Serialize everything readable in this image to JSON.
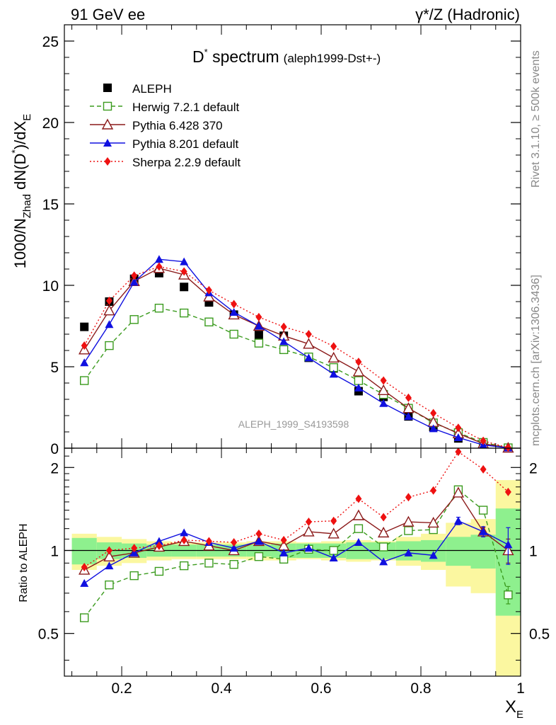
{
  "header": {
    "left": "91 GeV ee",
    "right": "γ*/Z (Hadronic)"
  },
  "side_texts": {
    "rivet": "Rivet 3.1.10, ≥ 500k events",
    "mcplots": "mcplots.cern.ch [arXiv:1306.3436]"
  },
  "watermark": "ALEPH_1999_S4193598",
  "chart_data": [
    {
      "type": "scatter",
      "panel": "main",
      "title": "D* spectrum",
      "title_main": "D",
      "title_sup": "*",
      "title_rest": " spectrum",
      "title_suffix": "(aleph1999-Dst+-)",
      "ylabel": "1000/N_Zhad dN(D*)/dX_E",
      "ylabel_parts": {
        "a": "1000/N",
        "a_sub": "Zhad",
        "b": " dN(D",
        "b_sup": "*",
        "c": ")/dX",
        "c_sub": "E"
      },
      "xlim": [
        0.085,
        1.0
      ],
      "ylim": [
        0,
        26
      ],
      "yticks": [
        0,
        5,
        10,
        15,
        20,
        25
      ],
      "ytick_labels": [
        "0",
        "5",
        "10",
        "15",
        "20",
        "25"
      ],
      "legend_position": "top-left",
      "x": [
        0.125,
        0.175,
        0.225,
        0.275,
        0.325,
        0.375,
        0.425,
        0.475,
        0.525,
        0.575,
        0.625,
        0.675,
        0.725,
        0.775,
        0.825,
        0.875,
        0.925,
        0.975
      ],
      "series": [
        {
          "name": "ALEPH",
          "color": "#000000",
          "marker": "square-filled",
          "line": "none",
          "values": [
            7.45,
            9.0,
            10.4,
            10.75,
            9.9,
            8.95,
            8.2,
            6.95,
            6.9,
            5.55,
            4.9,
            3.5,
            3.15,
            1.95,
            1.3,
            0.6,
            0.25,
            0.02
          ]
        },
        {
          "name": "Herwig 7.2.1 default",
          "color": "#3b9b1e",
          "marker": "square-open",
          "line": "dashed",
          "values": [
            4.15,
            6.3,
            7.9,
            8.6,
            8.3,
            7.75,
            7.0,
            6.45,
            6.05,
            5.6,
            4.95,
            4.15,
            3.3,
            2.45,
            1.55,
            0.95,
            0.35,
            0.02
          ]
        },
        {
          "name": "Pythia 6.428 370",
          "color": "#8b1a1a",
          "marker": "triangle-open",
          "line": "solid",
          "values": [
            6.05,
            8.45,
            10.25,
            11.05,
            10.65,
            9.3,
            8.2,
            7.5,
            6.9,
            6.4,
            5.55,
            4.7,
            3.55,
            2.45,
            1.6,
            0.9,
            0.28,
            0.02
          ]
        },
        {
          "name": "Pythia 8.201 default",
          "color": "#1010e0",
          "marker": "triangle-filled",
          "line": "solid",
          "values": [
            5.25,
            7.6,
            10.2,
            11.6,
            11.45,
            9.55,
            8.35,
            7.5,
            6.55,
            5.55,
            4.55,
            3.7,
            2.75,
            1.95,
            1.2,
            0.65,
            0.2,
            0.02
          ]
        },
        {
          "name": "Sherpa 2.2.9 default",
          "color": "#ee1111",
          "marker": "diamond-filled",
          "line": "dotted",
          "values": [
            6.3,
            9.05,
            10.6,
            11.15,
            10.85,
            9.7,
            8.85,
            8.05,
            7.45,
            7.0,
            6.25,
            5.3,
            4.15,
            3.1,
            2.15,
            1.25,
            0.45,
            0.03
          ]
        }
      ]
    },
    {
      "type": "scatter",
      "panel": "ratio",
      "ylabel": "Ratio to ALEPH",
      "xlabel": "X_E",
      "xlabel_parts": {
        "a": "X",
        "a_sub": "E"
      },
      "xlim": [
        0.085,
        1.0
      ],
      "ylim": [
        0.35,
        2.35
      ],
      "yticks": [
        0.5,
        1,
        2
      ],
      "ytick_labels": [
        "0.5",
        "1",
        "2"
      ],
      "xticks": [
        0.2,
        0.4,
        0.6,
        0.8,
        1.0
      ],
      "xtick_labels": [
        "0.2",
        "0.4",
        "0.6",
        "0.8",
        "1"
      ],
      "x": [
        0.125,
        0.175,
        0.225,
        0.275,
        0.325,
        0.375,
        0.425,
        0.475,
        0.525,
        0.575,
        0.625,
        0.675,
        0.725,
        0.775,
        0.825,
        0.875,
        0.925,
        0.975
      ],
      "bin_edges": [
        0.1,
        0.15,
        0.2,
        0.25,
        0.3,
        0.35,
        0.4,
        0.45,
        0.5,
        0.55,
        0.6,
        0.65,
        0.7,
        0.75,
        0.8,
        0.85,
        0.9,
        0.95,
        1.0
      ],
      "band_inner": [
        0.11,
        0.07,
        0.06,
        0.05,
        0.05,
        0.05,
        0.05,
        0.05,
        0.06,
        0.06,
        0.06,
        0.07,
        0.07,
        0.08,
        0.09,
        0.12,
        0.14,
        0.42
      ],
      "band_outer": [
        0.15,
        0.12,
        0.1,
        0.08,
        0.07,
        0.07,
        0.07,
        0.08,
        0.08,
        0.07,
        0.08,
        0.09,
        0.08,
        0.12,
        0.15,
        0.26,
        0.3,
        0.8
      ],
      "series": [
        {
          "name": "Herwig 7.2.1 default",
          "color": "#3b9b1e",
          "marker": "square-open",
          "line": "dashed",
          "values": [
            0.57,
            0.75,
            0.81,
            0.84,
            0.88,
            0.9,
            0.89,
            0.95,
            0.93,
            1.01,
            1.0,
            1.2,
            1.03,
            1.18,
            1.19,
            1.66,
            1.4,
            0.69
          ],
          "errors": [
            0,
            0,
            0,
            0,
            0,
            0,
            0,
            0,
            0,
            0,
            0,
            0,
            0,
            0,
            0,
            0,
            0,
            0.05
          ]
        },
        {
          "name": "Pythia 6.428 370",
          "color": "#8b1a1a",
          "marker": "triangle-open",
          "line": "solid",
          "values": [
            0.85,
            0.95,
            0.98,
            1.03,
            1.08,
            1.04,
            1.0,
            1.08,
            1.04,
            1.17,
            1.15,
            1.34,
            1.16,
            1.27,
            1.26,
            1.62,
            1.17,
            1.0
          ],
          "errors": [
            0,
            0,
            0,
            0,
            0,
            0,
            0,
            0,
            0,
            0,
            0,
            0,
            0,
            0,
            0,
            0,
            0.04,
            0.1
          ]
        },
        {
          "name": "Pythia 8.201 default",
          "color": "#1010e0",
          "marker": "triangle-filled",
          "line": "solid",
          "values": [
            0.76,
            0.88,
            0.98,
            1.08,
            1.16,
            1.07,
            1.02,
            1.08,
            0.98,
            1.02,
            0.94,
            1.07,
            0.91,
            0.98,
            0.96,
            1.28,
            1.17,
            1.05
          ],
          "errors": [
            0,
            0,
            0,
            0,
            0,
            0,
            0,
            0,
            0,
            0,
            0,
            0,
            0,
            0,
            0,
            0.04,
            0.05,
            0.16
          ]
        },
        {
          "name": "Sherpa 2.2.9 default",
          "color": "#ee1111",
          "marker": "diamond-filled",
          "line": "dotted",
          "values": [
            0.87,
            1.0,
            1.02,
            1.04,
            1.09,
            1.08,
            1.07,
            1.15,
            1.09,
            1.27,
            1.28,
            1.54,
            1.32,
            1.56,
            1.65,
            2.28,
            1.97,
            1.63
          ],
          "errors": [
            0,
            0,
            0,
            0,
            0,
            0,
            0,
            0,
            0,
            0,
            0,
            0,
            0,
            0,
            0,
            0,
            0,
            0
          ]
        }
      ]
    }
  ]
}
